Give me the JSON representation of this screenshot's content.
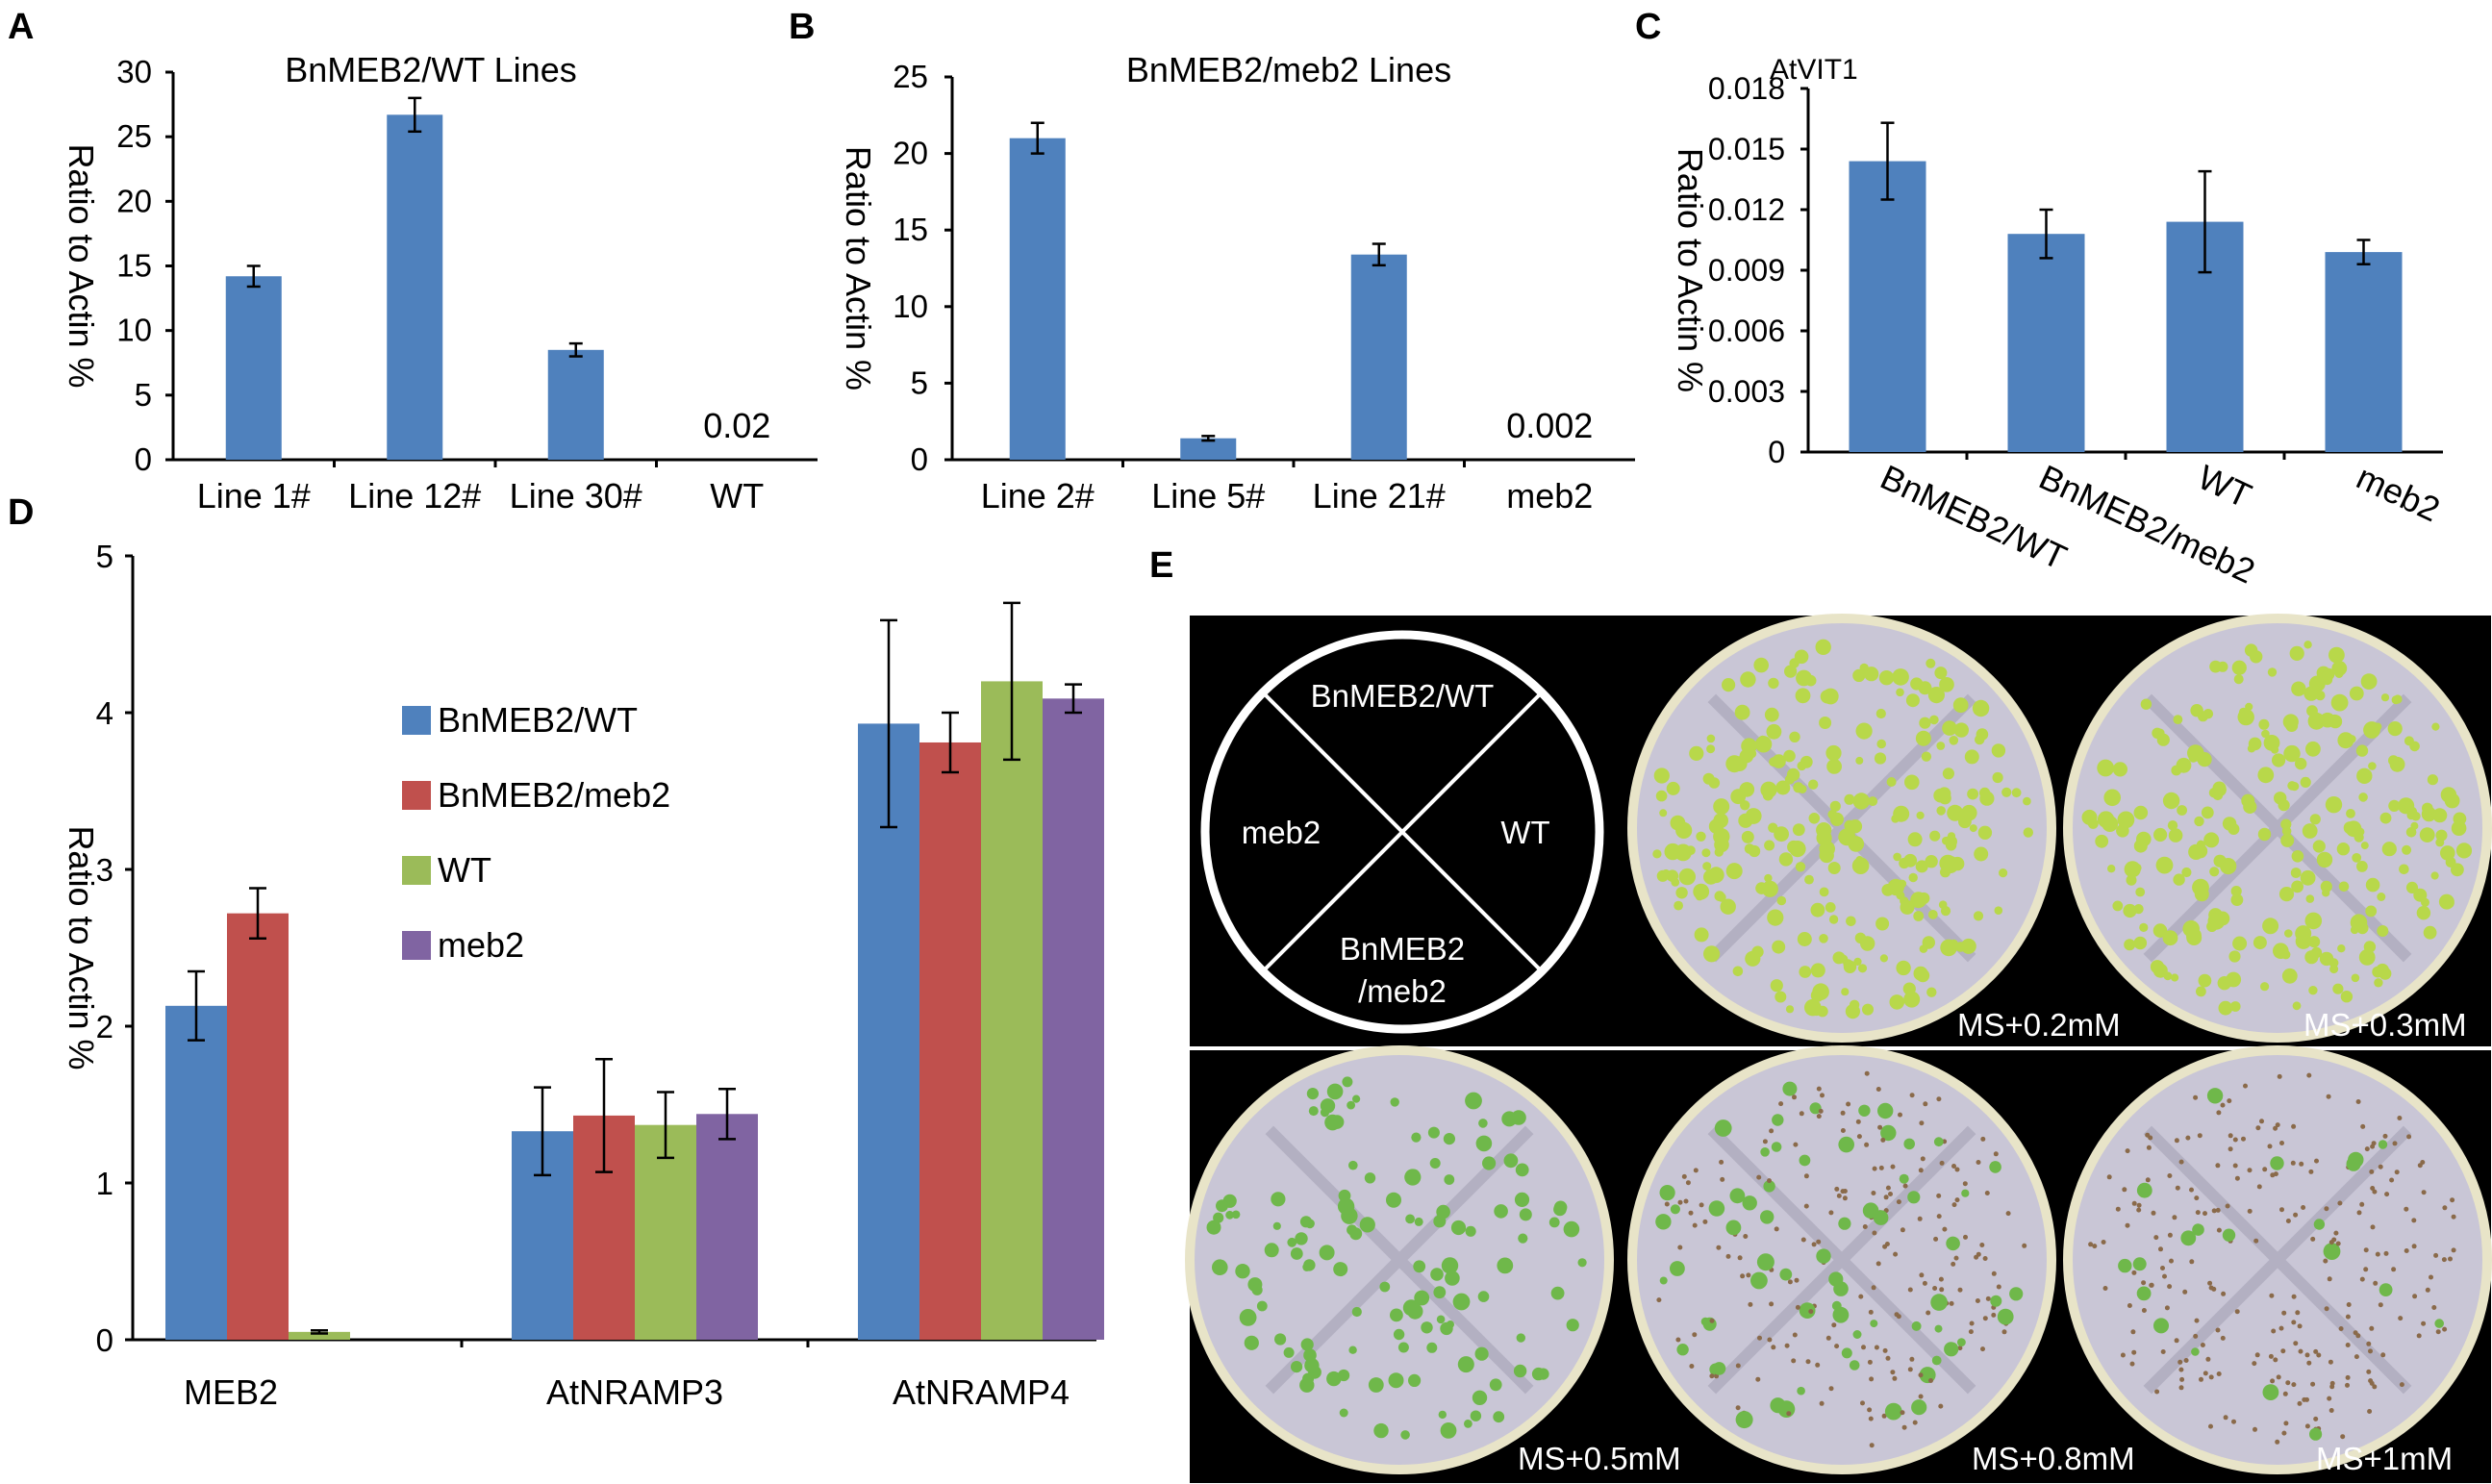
{
  "colors": {
    "blue": "#4f81bd",
    "red": "#c0504d",
    "green": "#9bbb59",
    "purple": "#8064a2",
    "axis": "#000000",
    "photo_bg": "#000000",
    "plate_edge": "#e8e4c8",
    "seedling": "#b8d84a"
  },
  "chart_data": [
    {
      "panel": "A",
      "type": "bar",
      "title": "BnMEB2/WT Lines",
      "xlabel": "",
      "ylabel": "Ratio to Actin %",
      "ylim": [
        0,
        30
      ],
      "yticks": [
        "0",
        "5",
        "10",
        "15",
        "20",
        "25",
        "30"
      ],
      "categories": [
        "Line 1#",
        "Line 12#",
        "Line 30#",
        "WT"
      ],
      "values": [
        14.2,
        26.7,
        8.5,
        0.02
      ],
      "errors": [
        0.8,
        1.3,
        0.5,
        0
      ],
      "annotations": [
        {
          "category": "WT",
          "text": "0.02"
        }
      ],
      "grid": false,
      "color": "blue"
    },
    {
      "panel": "B",
      "type": "bar",
      "title": "BnMEB2/meb2 Lines",
      "xlabel": "",
      "ylabel": "Ratio to Actin %",
      "ylim": [
        0,
        25
      ],
      "yticks": [
        "0",
        "5",
        "10",
        "15",
        "20",
        "25"
      ],
      "categories": [
        "Line 2#",
        "Line 5#",
        "Line 21#",
        "meb2"
      ],
      "values": [
        21.0,
        1.4,
        13.4,
        0.002
      ],
      "errors": [
        1.0,
        0.15,
        0.7,
        0
      ],
      "annotations": [
        {
          "category": "meb2",
          "text": "0.002"
        }
      ],
      "grid": false,
      "color": "blue"
    },
    {
      "panel": "C",
      "type": "bar",
      "title": "AtVIT1",
      "xlabel": "",
      "ylabel": "Ratio to Actin %",
      "ylim": [
        0,
        0.018
      ],
      "yticks": [
        "0",
        "0.003",
        "0.006",
        "0.009",
        "0.012",
        "0.015",
        "0.018"
      ],
      "categories": [
        "BnMEB2/WT",
        "BnMEB2/meb2",
        "WT",
        "meb2"
      ],
      "values": [
        0.0144,
        0.0108,
        0.0114,
        0.0099
      ],
      "errors": [
        0.0019,
        0.0012,
        0.0025,
        0.0006
      ],
      "grid": false,
      "color": "blue"
    },
    {
      "panel": "D",
      "type": "bar",
      "title": "",
      "xlabel": "",
      "ylabel": "Ratio to Actin %",
      "ylim": [
        0,
        5
      ],
      "yticks": [
        "0",
        "1",
        "2",
        "3",
        "4",
        "5"
      ],
      "categories": [
        "MEB2",
        "AtNRAMP3",
        "AtNRAMP4"
      ],
      "series": [
        {
          "name": "BnMEB2/WT",
          "color": "blue",
          "values": [
            2.13,
            1.33,
            3.93
          ],
          "errors": [
            0.22,
            0.28,
            0.66
          ]
        },
        {
          "name": "BnMEB2/meb2",
          "color": "red",
          "values": [
            2.72,
            1.43,
            3.81
          ],
          "errors": [
            0.16,
            0.36,
            0.19
          ]
        },
        {
          "name": "WT",
          "color": "green",
          "values": [
            0.05,
            1.37,
            4.2
          ],
          "errors": [
            0.01,
            0.21,
            0.5
          ]
        },
        {
          "name": "meb2",
          "color": "purple",
          "values": [
            0,
            1.44,
            4.09
          ],
          "errors": [
            0,
            0.16,
            0.09
          ]
        }
      ],
      "legend": "center-right",
      "grid": false
    }
  ],
  "panel_labels": {
    "a": "A",
    "b": "B",
    "c": "C",
    "d": "D",
    "e": "E"
  },
  "photos": {
    "diagram": {
      "q_top": "BnMEB2/WT",
      "q_left": "meb2",
      "q_right": "WT",
      "q_bottom_1": "BnMEB2",
      "q_bottom_2": "/meb2"
    },
    "plates": [
      {
        "label": "MS+0.2mM",
        "density": 1.0
      },
      {
        "label": "MS+0.3mM",
        "density": 0.95
      },
      {
        "label": "MS+0.5mM",
        "density": 0.55
      },
      {
        "label": "MS+0.8mM",
        "density": 0.22
      },
      {
        "label": "MS+1mM",
        "density": 0.05
      }
    ]
  }
}
